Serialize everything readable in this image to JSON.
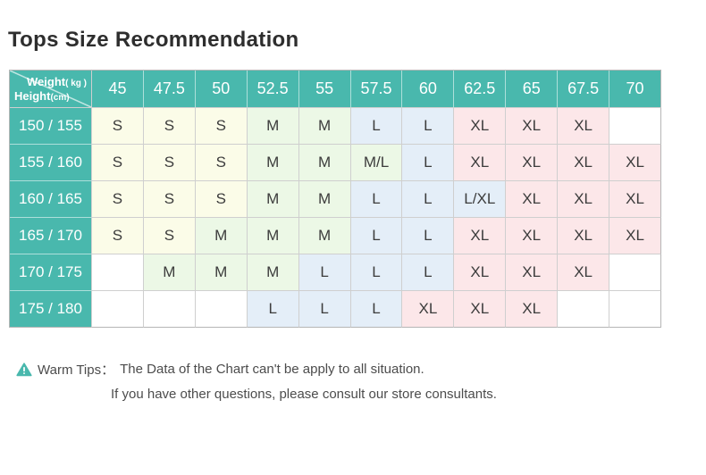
{
  "chart_data": {
    "type": "table",
    "title": "Tops Size Recommendation",
    "corner": {
      "weight_label": "Weight",
      "weight_unit": "( kg )",
      "height_label": "Height",
      "height_unit": "(cm)"
    },
    "weight_headers": [
      "45",
      "47.5",
      "50",
      "52.5",
      "55",
      "57.5",
      "60",
      "62.5",
      "65",
      "67.5",
      "70"
    ],
    "rows": [
      {
        "height": "150 / 155",
        "sizes": [
          "S",
          "S",
          "S",
          "M",
          "M",
          "L",
          "L",
          "XL",
          "XL",
          "XL",
          ""
        ]
      },
      {
        "height": "155 / 160",
        "sizes": [
          "S",
          "S",
          "S",
          "M",
          "M",
          "M/L",
          "L",
          "XL",
          "XL",
          "XL",
          "XL"
        ]
      },
      {
        "height": "160 / 165",
        "sizes": [
          "S",
          "S",
          "S",
          "M",
          "M",
          "L",
          "L",
          "L/XL",
          "XL",
          "XL",
          "XL"
        ]
      },
      {
        "height": "165 / 170",
        "sizes": [
          "S",
          "S",
          "M",
          "M",
          "M",
          "L",
          "L",
          "XL",
          "XL",
          "XL",
          "XL"
        ]
      },
      {
        "height": "170 / 175",
        "sizes": [
          "",
          "M",
          "M",
          "M",
          "L",
          "L",
          "L",
          "XL",
          "XL",
          "XL",
          ""
        ]
      },
      {
        "height": "175 / 180",
        "sizes": [
          "",
          "",
          "",
          "L",
          "L",
          "L",
          "XL",
          "XL",
          "XL",
          "",
          ""
        ]
      }
    ]
  },
  "warm_tips": {
    "icon": "warning-triangle-icon",
    "label": "Warm Tips：",
    "line1": "The Data of the Chart can't be apply to all situation.",
    "line2": "If you have other questions, please consult our store consultants."
  },
  "colors": {
    "teal": "#49b8ad",
    "size_s_bg": "#fbfce8",
    "size_m_bg": "#ecf8e6",
    "size_l_bg": "#e4eef8",
    "size_xl_bg": "#fce7e9"
  }
}
